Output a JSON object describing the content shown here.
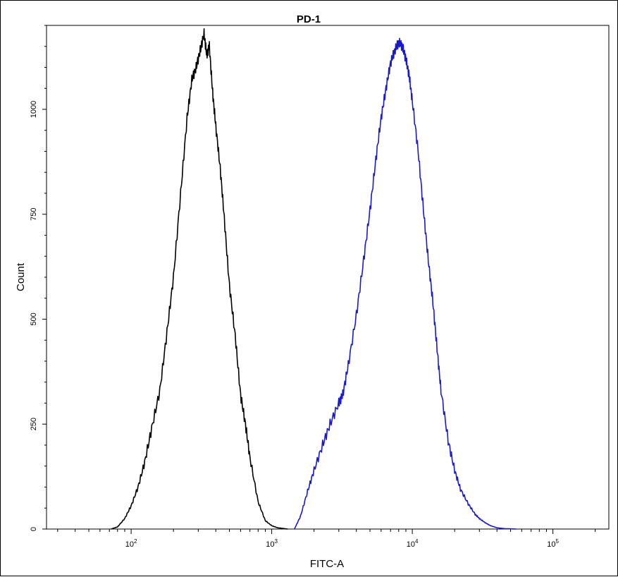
{
  "chart_data": {
    "type": "line",
    "title": "PD-1",
    "xlabel": "FITC-A",
    "ylabel": "Count",
    "x_scale": "log",
    "xlim": [
      25,
      250000
    ],
    "ylim": [
      0,
      1200
    ],
    "x_ticks": [
      {
        "value": 100,
        "base": "10",
        "exp": "2"
      },
      {
        "value": 1000,
        "base": "10",
        "exp": "3"
      },
      {
        "value": 10000,
        "base": "10",
        "exp": "4"
      },
      {
        "value": 100000,
        "base": "10",
        "exp": "5"
      }
    ],
    "y_ticks": [
      {
        "value": 0,
        "label": "0"
      },
      {
        "value": 250,
        "label": "250"
      },
      {
        "value": 500,
        "label": "500"
      },
      {
        "value": 750,
        "label": "750"
      },
      {
        "value": 1000,
        "label": "1000"
      }
    ],
    "grid": false,
    "series": [
      {
        "color": "#000000",
        "x": [
          72,
          80,
          90,
          100,
          112,
          125,
          140,
          160,
          180,
          200,
          225,
          250,
          270,
          290,
          310,
          330,
          345,
          360,
          380,
          400,
          430,
          460,
          500,
          550,
          600,
          650,
          700,
          800,
          900,
          1000,
          1100,
          1300
        ],
        "y": [
          0,
          5,
          25,
          55,
          100,
          160,
          240,
          330,
          470,
          600,
          800,
          980,
          1070,
          1100,
          1140,
          1180,
          1130,
          1150,
          1040,
          960,
          860,
          740,
          580,
          460,
          320,
          250,
          170,
          65,
          20,
          8,
          3,
          0
        ]
      },
      {
        "color": "#1a1acd",
        "x": [
          1450,
          1600,
          1800,
          2000,
          2300,
          2600,
          3000,
          3200,
          3500,
          4000,
          4500,
          5000,
          5500,
          6000,
          6500,
          7000,
          7500,
          8000,
          8500,
          9000,
          9500,
          10000,
          11000,
          12000,
          13000,
          14000,
          15000,
          16000,
          18000,
          20000,
          22000,
          25000,
          28000,
          30000,
          33000,
          36000,
          40000,
          45000,
          50000,
          55000
        ],
        "y": [
          0,
          30,
          90,
          140,
          200,
          250,
          300,
          320,
          390,
          510,
          640,
          760,
          880,
          980,
          1050,
          1110,
          1140,
          1160,
          1150,
          1120,
          1080,
          1020,
          900,
          760,
          640,
          540,
          430,
          330,
          210,
          140,
          95,
          60,
          35,
          25,
          15,
          8,
          3,
          1,
          0.5,
          0
        ]
      }
    ]
  }
}
